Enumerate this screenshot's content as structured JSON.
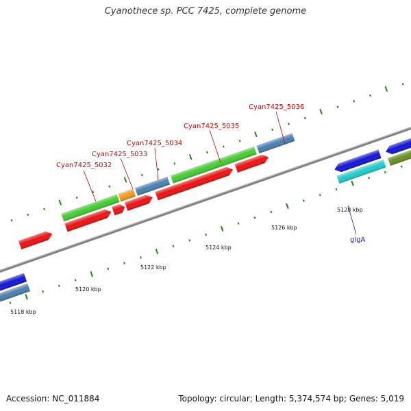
{
  "title": "Cyanothece sp. PCC 7425, complete genome",
  "footer": {
    "accession": "Accession: NC_011884",
    "stats": "Topology: circular; Length: 5,374,574 bp; Genes: 5,019"
  },
  "colors": {
    "backbone": "#808080",
    "tick": "#2e7d1e",
    "label_red": "#cc0000",
    "label_blue": "#1a1aa0",
    "red": "#ee1111",
    "green": "#44cc33",
    "orange": "#f29a1a",
    "steel": "#4a7fb0",
    "blue": "#1414d8",
    "cyan": "#22cccc",
    "olive": "#6b8e23"
  },
  "scale_labels": [
    "5118 kbp",
    "5120 kbp",
    "5122 kbp",
    "5124 kbp",
    "5126 kbp",
    "5128 kbp"
  ],
  "gene_labels": {
    "g5032": "Cyan7425_5032",
    "g5033": "Cyan7425_5033",
    "g5034": "Cyan7425_5034",
    "g5035": "Cyan7425_5035",
    "g5036": "Cyan7425_5036",
    "glgA": "glgA"
  }
}
